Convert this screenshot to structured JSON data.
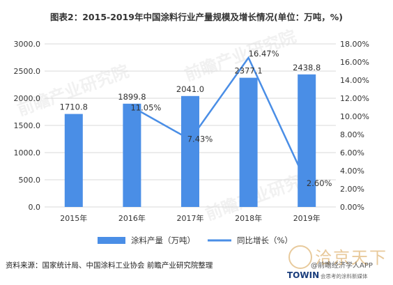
{
  "title": "图表2：2015-2019年中国涂料行业产量规模及增长情况(单位：万吨，%)",
  "source": "资料来源：国家统计局、中国涂料工业协会  前瞻产业研究院整理",
  "watermark": "前瞻产业研究院",
  "brand": {
    "name": "洽京天下",
    "sub": "@前瞻经济学人APP",
    "towin": "TOWIN",
    "tagline": "会思考的涂料新媒体"
  },
  "colors": {
    "bar": "#4a8ee6",
    "line": "#4a8ee6",
    "grid": "#d9d9d9",
    "text": "#333333"
  },
  "chart_data": {
    "type": "bar",
    "categories": [
      "2015年",
      "2016年",
      "2017年",
      "2018年",
      "2019年"
    ],
    "series": [
      {
        "name": "涂料产量（万吨）",
        "type": "bar",
        "axis": "left",
        "values": [
          1710.8,
          1899.8,
          2041.0,
          2377.1,
          2438.8
        ],
        "labels": [
          "1710.8",
          "1899.8",
          "2041.0",
          "2377.1",
          "2438.8"
        ]
      },
      {
        "name": "同比增长（%）",
        "type": "line",
        "axis": "right",
        "values": [
          null,
          11.05,
          7.43,
          16.47,
          2.6
        ],
        "labels": [
          "",
          "11.05%",
          "7.43%",
          "16.47%",
          "2.60%"
        ]
      }
    ],
    "y_left": {
      "min": 0,
      "max": 3000,
      "ticks": [
        "0.0",
        "500.0",
        "1000.0",
        "1500.0",
        "2000.0",
        "2500.0",
        "3000.0"
      ]
    },
    "y_right": {
      "min": 0,
      "max": 18,
      "ticks": [
        "0.00%",
        "2.00%",
        "4.00%",
        "6.00%",
        "8.00%",
        "10.00%",
        "12.00%",
        "14.00%",
        "16.00%",
        "18.00%"
      ]
    },
    "grid": true,
    "legend": "bottom"
  }
}
